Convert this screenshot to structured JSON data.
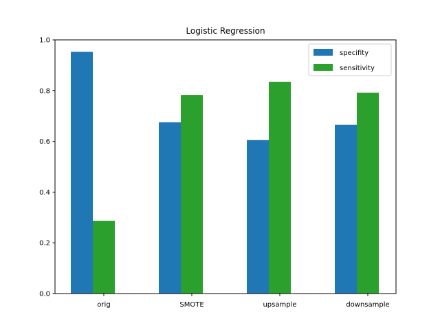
{
  "chart_data": {
    "type": "bar",
    "title": "Logistic Regression",
    "xlabel": "",
    "ylabel": "",
    "categories": [
      "orig",
      "SMOTE",
      "upsample",
      "downsample"
    ],
    "series": [
      {
        "name": "specifity",
        "values": [
          0.953,
          0.675,
          0.605,
          0.665
        ],
        "color": "#1f77b4"
      },
      {
        "name": "sensitivity",
        "values": [
          0.287,
          0.783,
          0.835,
          0.792
        ],
        "color": "#2ca02c"
      }
    ],
    "ylim": [
      0,
      1.0
    ],
    "yticks": [
      "0.0",
      "0.2",
      "0.4",
      "0.6",
      "0.8",
      "1.0"
    ],
    "grid": false,
    "legend_position": "top-right"
  }
}
